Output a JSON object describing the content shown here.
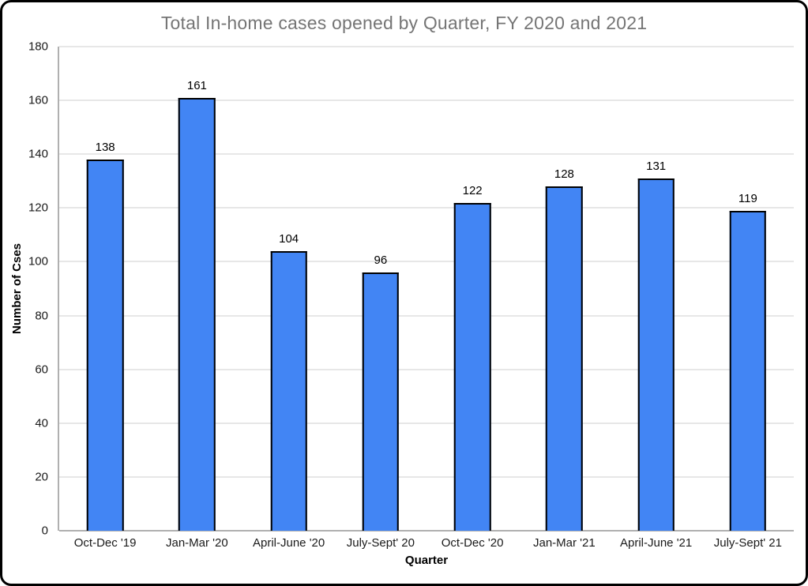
{
  "chart_data": {
    "type": "bar",
    "title": "Total In-home cases opened by Quarter, FY 2020 and 2021",
    "categories": [
      "Oct-Dec '19",
      "Jan-Mar '20",
      "April-June '20",
      "July-Sept' 20",
      "Oct-Dec '20",
      "Jan-Mar '21",
      "April-June '21",
      "July-Sept' 21"
    ],
    "values": [
      138,
      161,
      104,
      96,
      122,
      128,
      131,
      119
    ],
    "xlabel": "Quarter",
    "ylabel": "Number of Cses",
    "ylim": [
      0,
      180
    ],
    "ytick_step": 20,
    "yticks": [
      0,
      20,
      40,
      60,
      80,
      100,
      120,
      140,
      160,
      180
    ],
    "grid": true,
    "legend_position": "none",
    "data_labels": true,
    "bar_width_fraction": 0.4
  },
  "colors": {
    "background": "#ffffff",
    "outer_border": "#000000",
    "title_text": "#757575",
    "bar_fill": "#4285f4",
    "bar_border": "#000000",
    "gridline": "#e7e7e7",
    "axis_line": "#b0b0b0",
    "tick_text": "#1a1a1a",
    "axis_title_text": "#000000"
  }
}
